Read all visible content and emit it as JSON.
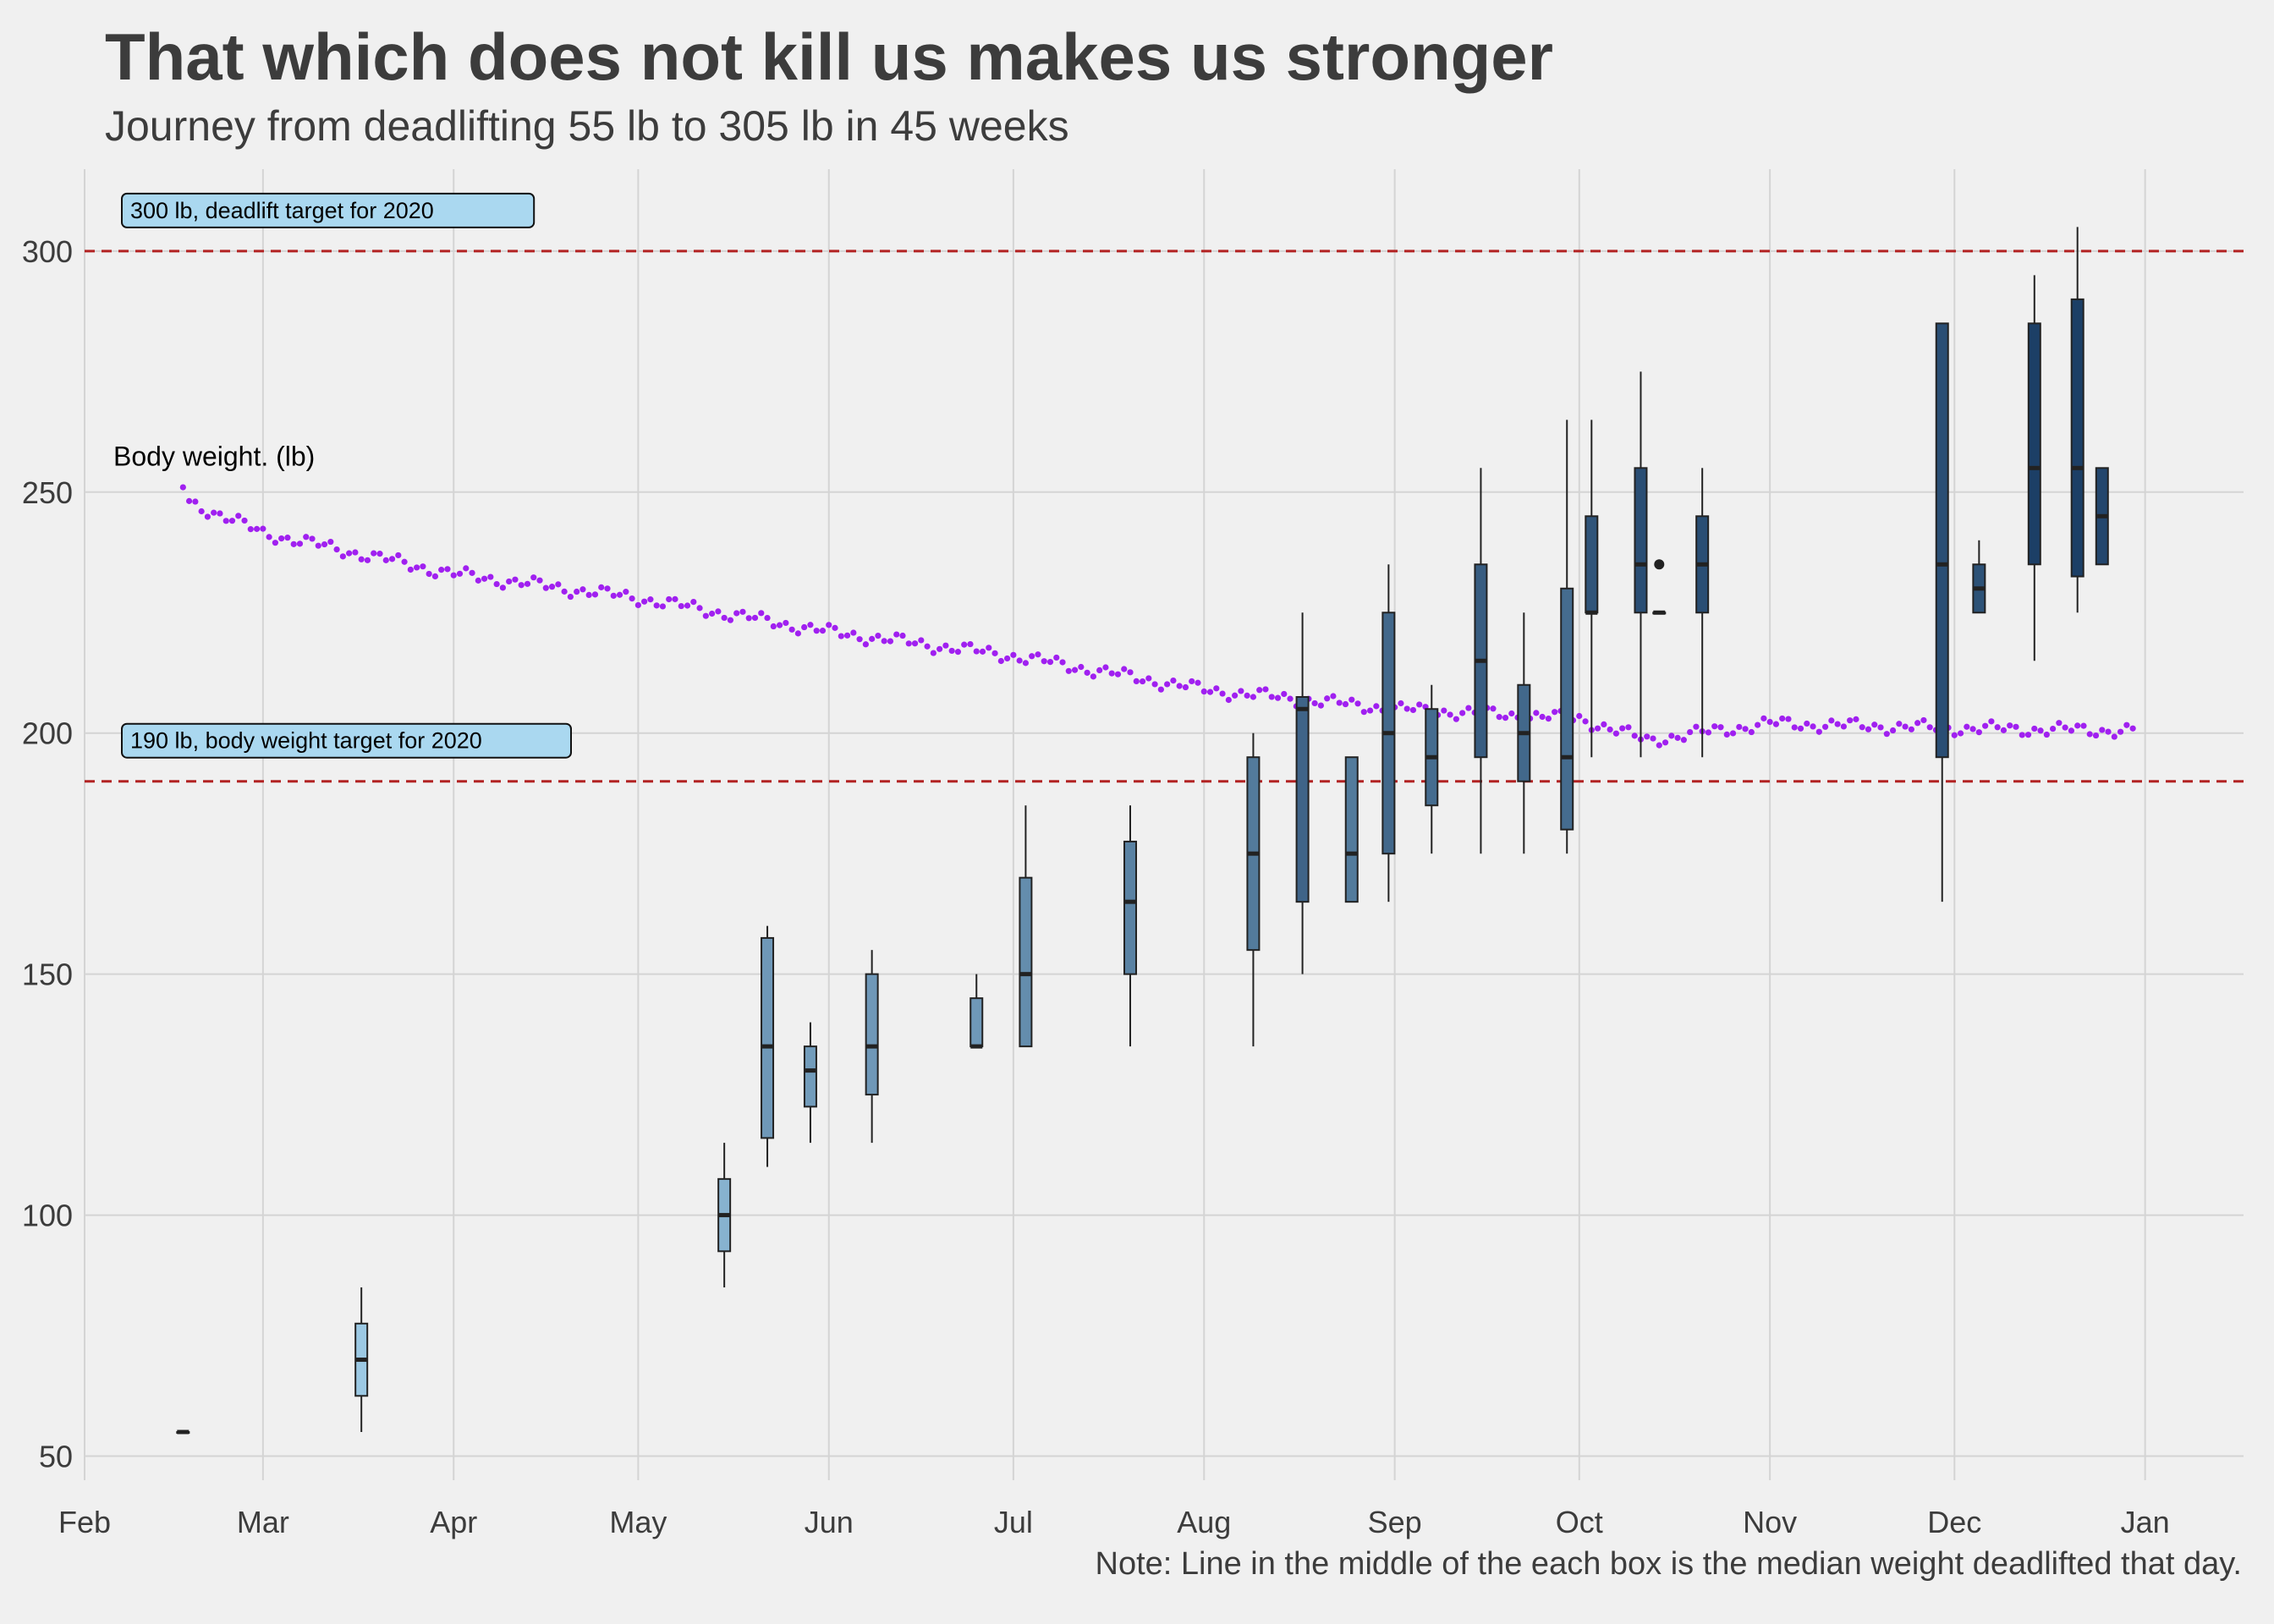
{
  "title": "That which does not kill us makes us stronger",
  "subtitle": "Journey from deadlifting 55 lb to 305 lb in 45 weeks",
  "caption": "Note: Line in the middle of the each box is the median weight deadlifted that day.",
  "colors": {
    "background": "#f0f0f0",
    "grid": "#d4d4d4",
    "target_line": "#b22222",
    "body_weight_points": "#a020f0",
    "box_light": "#a6d4ee",
    "box_dark": "#1c3f66",
    "label_box_fill": "#aad8f0"
  },
  "chart_data": {
    "type": "box",
    "x_axis": {
      "type": "date",
      "ticks": [
        "Feb",
        "Mar",
        "Apr",
        "May",
        "Jun",
        "Jul",
        "Aug",
        "Sep",
        "Oct",
        "Nov",
        "Dec",
        "Jan"
      ],
      "range": [
        "2020-02-01",
        "2021-01-17"
      ]
    },
    "y_axis": {
      "ticks": [
        50,
        100,
        150,
        200,
        250,
        300
      ],
      "ylim": [
        45,
        317
      ]
    },
    "grid": true,
    "reference_lines": [
      {
        "y": 300,
        "label": "300 lb, deadlift target for 2020",
        "style": "dashed"
      },
      {
        "y": 190,
        "label": "190 lb, body weight target for 2020",
        "style": "dashed"
      }
    ],
    "body_weight_label": "Body weight. (lb)",
    "deadlift_sessions": [
      {
        "date": "2020-02-17",
        "min": 55,
        "q1": 55,
        "median": 55,
        "q3": 55,
        "max": 55
      },
      {
        "date": "2020-03-17",
        "min": 55,
        "q1": 62.5,
        "median": 70,
        "q3": 77.5,
        "max": 85
      },
      {
        "date": "2020-05-15",
        "min": 85,
        "q1": 92.5,
        "median": 100,
        "q3": 107.5,
        "max": 115
      },
      {
        "date": "2020-05-22",
        "min": 110,
        "q1": 116,
        "median": 135,
        "q3": 157.5,
        "max": 160
      },
      {
        "date": "2020-05-29",
        "min": 115,
        "q1": 122.5,
        "median": 130,
        "q3": 135,
        "max": 140
      },
      {
        "date": "2020-06-08",
        "min": 115,
        "q1": 125,
        "median": 135,
        "q3": 150,
        "max": 155
      },
      {
        "date": "2020-06-25",
        "min": 135,
        "q1": 135,
        "median": 135,
        "q3": 145,
        "max": 150
      },
      {
        "date": "2020-07-03",
        "min": 135,
        "q1": 135,
        "median": 150,
        "q3": 170,
        "max": 185
      },
      {
        "date": "2020-07-20",
        "min": 135,
        "q1": 150,
        "median": 165,
        "q3": 177.5,
        "max": 185
      },
      {
        "date": "2020-08-09",
        "min": 135,
        "q1": 155,
        "median": 175,
        "q3": 195,
        "max": 200
      },
      {
        "date": "2020-08-17",
        "min": 150,
        "q1": 165,
        "median": 205,
        "q3": 207.5,
        "max": 225
      },
      {
        "date": "2020-08-25",
        "min": 165,
        "q1": 165,
        "median": 175,
        "q3": 195,
        "max": 195
      },
      {
        "date": "2020-08-31",
        "min": 165,
        "q1": 175,
        "median": 200,
        "q3": 225,
        "max": 235
      },
      {
        "date": "2020-09-07",
        "min": 175,
        "q1": 185,
        "median": 195,
        "q3": 205,
        "max": 210
      },
      {
        "date": "2020-09-15",
        "min": 175,
        "q1": 195,
        "median": 215,
        "q3": 235,
        "max": 255
      },
      {
        "date": "2020-09-22",
        "min": 175,
        "q1": 190,
        "median": 200,
        "q3": 210,
        "max": 225
      },
      {
        "date": "2020-09-29",
        "min": 175,
        "q1": 180,
        "median": 195,
        "q3": 230,
        "max": 265
      },
      {
        "date": "2020-10-03",
        "min": 195,
        "q1": 225,
        "median": 225,
        "q3": 245,
        "max": 265
      },
      {
        "date": "2020-10-11",
        "min": 195,
        "q1": 225,
        "median": 235,
        "q3": 255,
        "max": 275
      },
      {
        "date": "2020-10-14",
        "min": 225,
        "q1": 225,
        "median": 225,
        "q3": 225,
        "max": 225,
        "outliers": [
          235
        ]
      },
      {
        "date": "2020-10-21",
        "min": 195,
        "q1": 225,
        "median": 235,
        "q3": 245,
        "max": 255
      },
      {
        "date": "2020-11-29",
        "min": 165,
        "q1": 195,
        "median": 235,
        "q3": 285,
        "max": 285
      },
      {
        "date": "2020-12-05",
        "min": 225,
        "q1": 225,
        "median": 230,
        "q3": 235,
        "max": 240
      },
      {
        "date": "2020-12-14",
        "min": 215,
        "q1": 235,
        "median": 255,
        "q3": 285,
        "max": 295
      },
      {
        "date": "2020-12-21",
        "min": 225,
        "q1": 232.5,
        "median": 255,
        "q3": 290,
        "max": 305
      },
      {
        "date": "2020-12-25",
        "min": 235,
        "q1": 235,
        "median": 245,
        "q3": 255,
        "max": 255
      }
    ],
    "body_weight_trend": [
      {
        "date": "2020-02-17",
        "weight": 251.5
      },
      {
        "date": "2020-02-18",
        "weight": 248
      },
      {
        "date": "2020-03-01",
        "weight": 241.5
      },
      {
        "date": "2020-04-01",
        "weight": 233
      },
      {
        "date": "2020-05-01",
        "weight": 228
      },
      {
        "date": "2020-06-01",
        "weight": 221
      },
      {
        "date": "2020-07-01",
        "weight": 216
      },
      {
        "date": "2020-08-01",
        "weight": 209
      },
      {
        "date": "2020-09-01",
        "weight": 205
      },
      {
        "date": "2020-10-01",
        "weight": 203
      },
      {
        "date": "2020-10-12",
        "weight": 198.5
      },
      {
        "date": "2020-11-01",
        "weight": 202
      },
      {
        "date": "2020-12-01",
        "weight": 201
      },
      {
        "date": "2020-12-30",
        "weight": 200.5
      }
    ]
  }
}
